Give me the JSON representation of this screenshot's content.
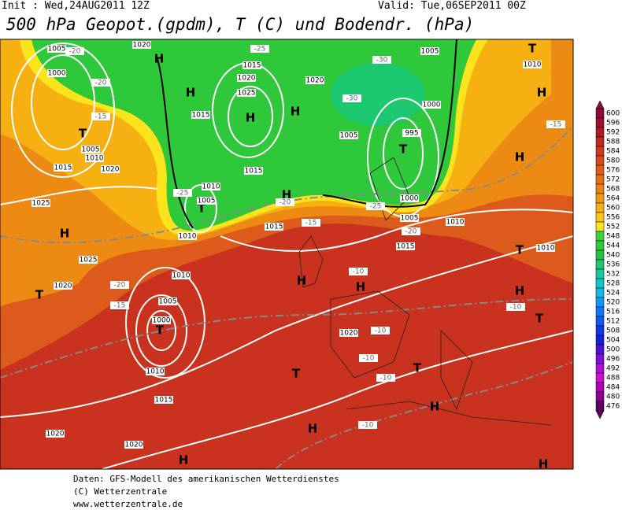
{
  "header": {
    "init": "Init : Wed,24AUG2011 12Z",
    "valid": "Valid: Tue,06SEP2011 00Z",
    "title": "500 hPa Geopot.(gpdm), T (C) und Bodendr. (hPa)"
  },
  "highs_lows": [
    "H",
    "H",
    "H",
    "H",
    "H",
    "H",
    "H",
    "H",
    "H",
    "H",
    "H",
    "H",
    "H",
    "H",
    "H",
    "T",
    "T",
    "T",
    "T",
    "T",
    "T",
    "T",
    "T",
    "T",
    "T"
  ],
  "isobar_labels": [
    "1005",
    "1020",
    "1000",
    "1005",
    "1010",
    "1015",
    "1020",
    "1025",
    "1025",
    "1020",
    "1015",
    "1020",
    "1025",
    "1015",
    "1020",
    "1005",
    "1010",
    "1000",
    "995",
    "1005",
    "1015",
    "1010",
    "1005",
    "1010",
    "1015",
    "1000",
    "1005",
    "1010",
    "1015",
    "1010",
    "1010",
    "1005",
    "1000",
    "1010",
    "1015",
    "1020",
    "1020",
    "1020"
  ],
  "temperature_labels": [
    "-20",
    "-20",
    "-15",
    "-25",
    "-30",
    "-30",
    "-25",
    "-20",
    "-15",
    "-10",
    "-20",
    "-15",
    "-10",
    "-10",
    "-10",
    "-10",
    "-10",
    "-15",
    "-25",
    "-20"
  ],
  "colorbar": {
    "ticks": [
      600,
      596,
      592,
      588,
      584,
      580,
      576,
      572,
      568,
      564,
      560,
      556,
      552,
      548,
      544,
      540,
      536,
      532,
      528,
      524,
      520,
      516,
      512,
      508,
      504,
      500,
      496,
      492,
      488,
      484,
      480,
      476
    ],
    "colors": [
      "#8b0a3a",
      "#a01030",
      "#b21a2a",
      "#c02a22",
      "#cc3a1e",
      "#d84a1a",
      "#e05a18",
      "#e66e14",
      "#ec8212",
      "#f29810",
      "#f6ae12",
      "#fac818",
      "#fbe41c",
      "#3ed23a",
      "#2ec83a",
      "#22c040",
      "#1cc870",
      "#18c8a0",
      "#10c8c8",
      "#10b8e8",
      "#1098f8",
      "#1078f8",
      "#1058f0",
      "#1038e8",
      "#1820d8",
      "#5010d8",
      "#8010d8",
      "#b010d8",
      "#d010d0",
      "#b000b0",
      "#900090",
      "#600060"
    ]
  },
  "footer": [
    "Daten: GFS-Modell des amerikanischen Wetterdienstes",
    "(C) Wetterzentrale",
    "www.wetterzentrale.de"
  ]
}
